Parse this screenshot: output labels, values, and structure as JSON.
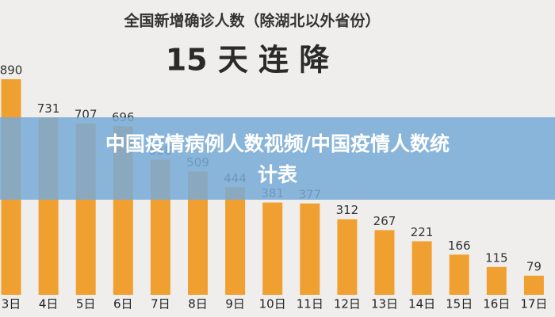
{
  "chart_data": {
    "type": "bar",
    "title": "全国新增确诊人数（除湖北以外省份）",
    "subtitle": "15 天 连 降",
    "categories": [
      "3日",
      "4日",
      "5日",
      "6日",
      "7日",
      "8日",
      "9日",
      "10日",
      "11日",
      "12日",
      "13日",
      "14日",
      "15日",
      "16日",
      "17日"
    ],
    "values": [
      890,
      731,
      707,
      696,
      558,
      509,
      444,
      381,
      377,
      312,
      267,
      221,
      166,
      115,
      79
    ],
    "color": "#f0a030"
  },
  "banner": {
    "line1": "中国疫情病例人数视频/中国疫情人数统",
    "line2": "计表"
  }
}
